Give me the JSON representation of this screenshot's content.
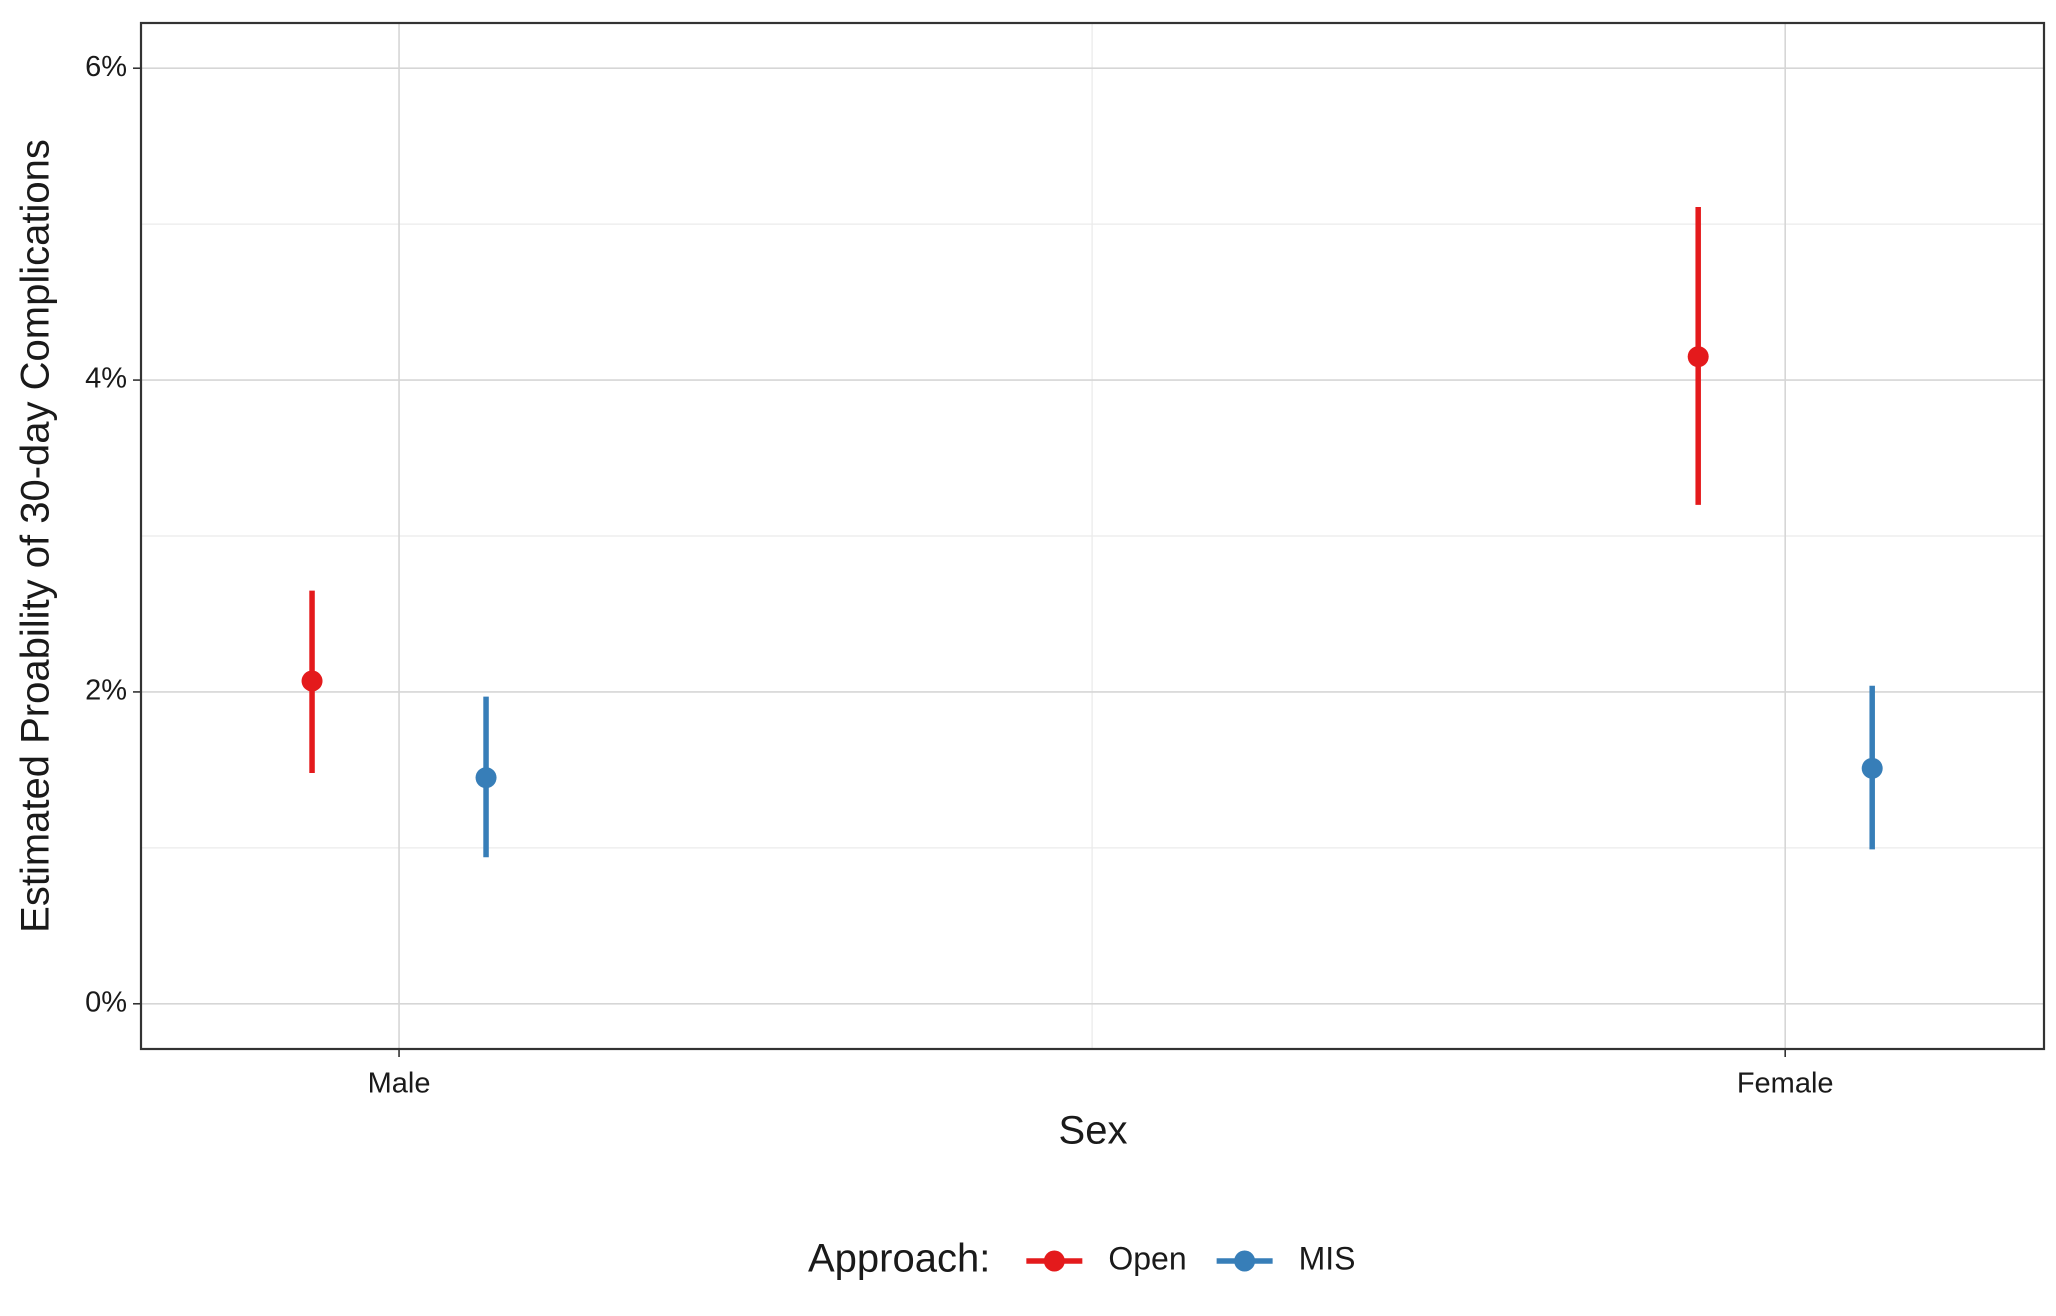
{
  "chart_data": {
    "type": "pointrange",
    "x_label": "Sex",
    "y_label": "Estimated Proability of 30-day Complications",
    "legend_title": "Approach:",
    "legend_position": "bottom",
    "categories": [
      "Male",
      "Female"
    ],
    "series": [
      {
        "name": "Open",
        "color": "#e41a1c",
        "values": [
          2.07,
          4.15
        ],
        "lower": [
          1.48,
          3.2
        ],
        "upper": [
          2.65,
          5.11
        ]
      },
      {
        "name": "MIS",
        "color": "#377eb8",
        "values": [
          1.45,
          1.51
        ],
        "lower": [
          0.94,
          0.99
        ],
        "upper": [
          1.97,
          2.04
        ]
      }
    ],
    "ylim": [
      -0.29,
      6.29
    ],
    "yticks": [
      {
        "value": 0,
        "label": "0%"
      },
      {
        "value": 2,
        "label": "2%"
      },
      {
        "value": 4,
        "label": "4%"
      },
      {
        "value": 6,
        "label": "6%"
      }
    ],
    "minor_yticks": [
      1,
      3,
      5
    ],
    "grid": true
  }
}
